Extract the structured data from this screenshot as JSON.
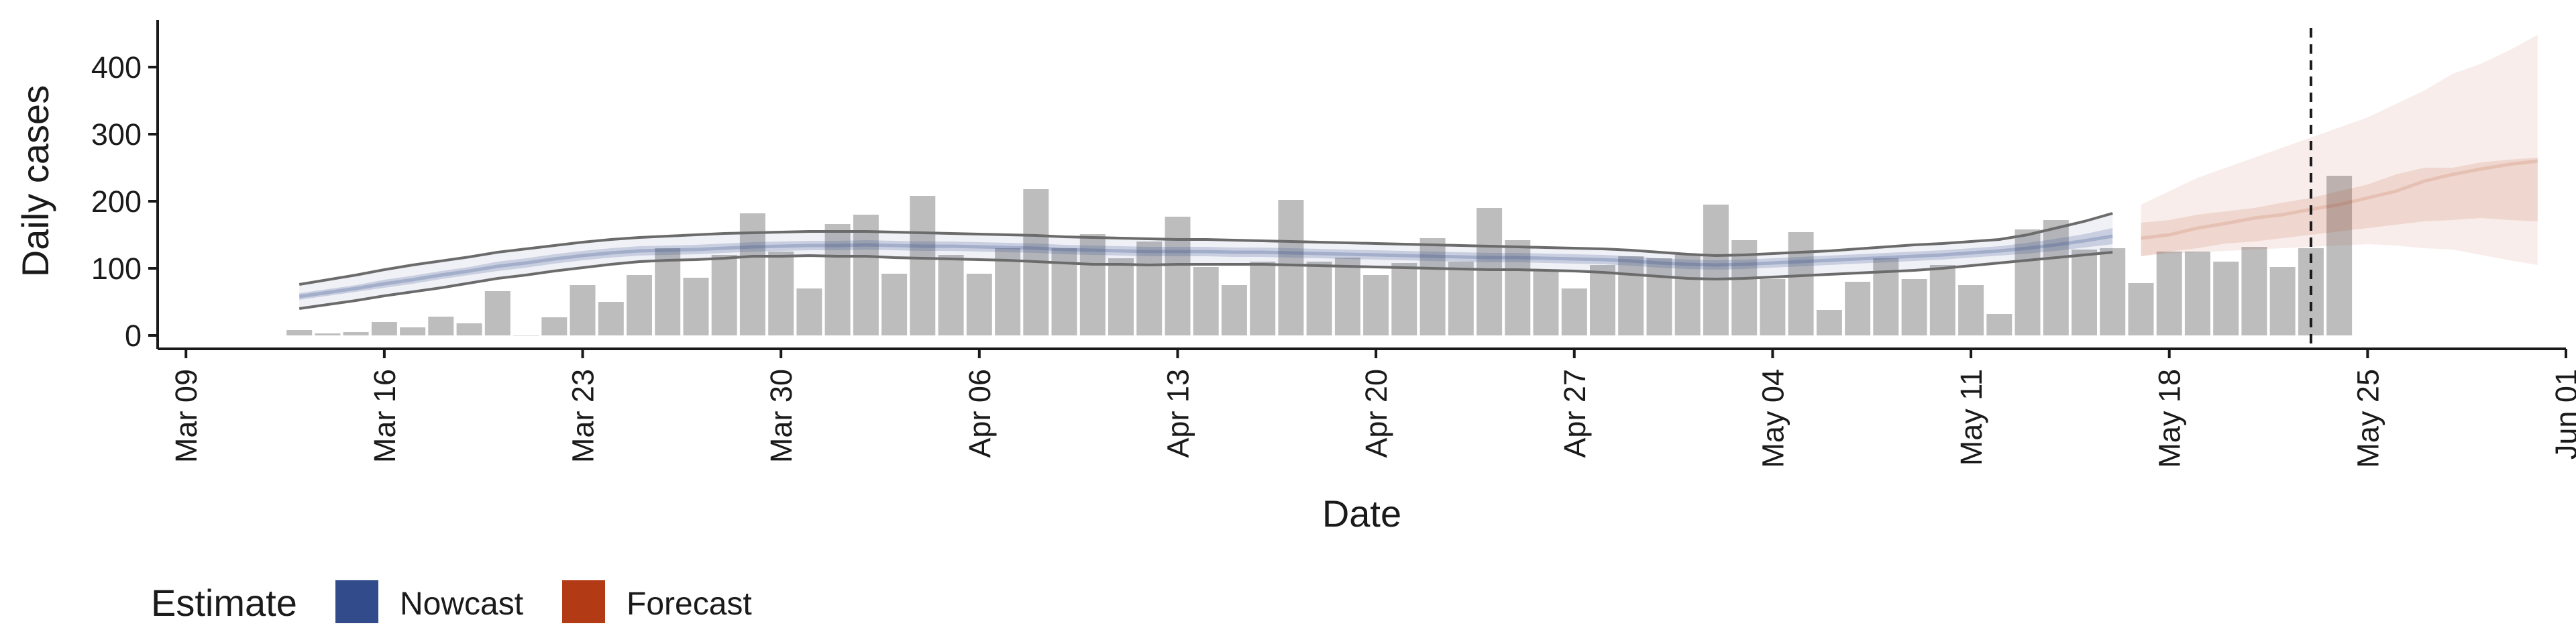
{
  "chart_data": {
    "type": "bar",
    "xlabel": "Date",
    "ylabel": "Daily cases",
    "y_ticks": [
      0,
      100,
      200,
      300,
      400
    ],
    "ylim": [
      -20,
      470
    ],
    "x_domain": [
      "2020-03-08",
      "2020-06-01"
    ],
    "x_ticks": [
      {
        "date": "2020-03-09",
        "label": "Mar 09"
      },
      {
        "date": "2020-03-16",
        "label": "Mar 16"
      },
      {
        "date": "2020-03-23",
        "label": "Mar 23"
      },
      {
        "date": "2020-03-30",
        "label": "Mar 30"
      },
      {
        "date": "2020-04-06",
        "label": "Apr 06"
      },
      {
        "date": "2020-04-13",
        "label": "Apr 13"
      },
      {
        "date": "2020-04-20",
        "label": "Apr 20"
      },
      {
        "date": "2020-04-27",
        "label": "Apr 27"
      },
      {
        "date": "2020-05-04",
        "label": "May 04"
      },
      {
        "date": "2020-05-11",
        "label": "May 11"
      },
      {
        "date": "2020-05-18",
        "label": "May 18"
      },
      {
        "date": "2020-05-25",
        "label": "May 25"
      },
      {
        "date": "2020-06-01",
        "label": "Jun 01"
      }
    ],
    "reported_cases": {
      "start_date": "2020-03-13",
      "values": [
        8,
        3,
        5,
        20,
        12,
        28,
        18,
        66,
        0,
        27,
        75,
        50,
        90,
        130,
        86,
        120,
        182,
        125,
        70,
        166,
        180,
        92,
        208,
        120,
        92,
        130,
        218,
        130,
        151,
        115,
        140,
        177,
        102,
        75,
        110,
        202,
        110,
        116,
        90,
        108,
        145,
        110,
        190,
        142,
        98,
        70,
        105,
        118,
        115,
        120,
        195,
        142,
        84,
        154,
        38,
        80,
        115,
        84,
        105,
        75,
        32,
        158,
        172,
        128,
        130,
        78,
        125,
        125,
        110,
        132,
        102,
        130,
        238
      ]
    },
    "nowcast": {
      "start_date": "2020-03-13",
      "mean": [
        58,
        64,
        70,
        77,
        83,
        90,
        96,
        103,
        108,
        114,
        119,
        123,
        126,
        127,
        128,
        130,
        132,
        133,
        134,
        134,
        135,
        134,
        133,
        133,
        132,
        131,
        130,
        128,
        127,
        126,
        125,
        125,
        125,
        124,
        124,
        123,
        122,
        121,
        120,
        119,
        118,
        117,
        116,
        116,
        115,
        114,
        113,
        111,
        108,
        106,
        105,
        106,
        108,
        110,
        112,
        114,
        116,
        118,
        120,
        123,
        126,
        130,
        135,
        141,
        148
      ],
      "inner_lower": [
        53,
        59,
        65,
        71,
        77,
        84,
        90,
        96,
        101,
        107,
        112,
        116,
        119,
        120,
        121,
        123,
        125,
        126,
        127,
        127,
        128,
        127,
        126,
        126,
        125,
        124,
        123,
        121,
        120,
        119,
        118,
        118,
        118,
        117,
        117,
        116,
        115,
        114,
        113,
        112,
        111,
        110,
        109,
        109,
        108,
        107,
        106,
        104,
        101,
        99,
        98,
        99,
        101,
        103,
        105,
        107,
        109,
        111,
        113,
        116,
        119,
        122,
        126,
        131,
        136
      ],
      "inner_upper": [
        63,
        69,
        75,
        83,
        89,
        96,
        102,
        110,
        115,
        121,
        126,
        130,
        133,
        134,
        135,
        137,
        139,
        140,
        141,
        141,
        142,
        141,
        140,
        140,
        139,
        138,
        137,
        135,
        134,
        133,
        132,
        132,
        132,
        131,
        131,
        130,
        129,
        128,
        127,
        126,
        125,
        124,
        123,
        123,
        122,
        121,
        120,
        118,
        115,
        113,
        112,
        113,
        115,
        117,
        119,
        121,
        123,
        125,
        127,
        130,
        133,
        138,
        144,
        151,
        160
      ],
      "outer_lower": [
        40,
        46,
        52,
        59,
        65,
        71,
        78,
        85,
        90,
        96,
        101,
        106,
        110,
        112,
        113,
        115,
        118,
        118,
        119,
        118,
        118,
        116,
        115,
        114,
        113,
        112,
        110,
        108,
        106,
        106,
        105,
        106,
        106,
        106,
        106,
        105,
        104,
        103,
        102,
        101,
        100,
        99,
        98,
        98,
        97,
        96,
        94,
        91,
        88,
        85,
        84,
        85,
        87,
        89,
        91,
        93,
        95,
        97,
        100,
        104,
        108,
        112,
        116,
        120,
        124
      ],
      "outer_upper": [
        76,
        83,
        90,
        98,
        105,
        111,
        117,
        124,
        129,
        134,
        139,
        143,
        146,
        148,
        150,
        152,
        153,
        154,
        155,
        155,
        155,
        154,
        153,
        152,
        151,
        150,
        149,
        147,
        146,
        145,
        144,
        143,
        143,
        142,
        141,
        140,
        139,
        138,
        137,
        136,
        135,
        134,
        133,
        132,
        131,
        130,
        129,
        127,
        124,
        121,
        119,
        120,
        122,
        124,
        126,
        129,
        132,
        135,
        137,
        140,
        143,
        150,
        160,
        170,
        182
      ]
    },
    "forecast": {
      "start_date": "2020-05-17",
      "mean": [
        145,
        150,
        160,
        167,
        175,
        180,
        188,
        195,
        205,
        215,
        230,
        240,
        248,
        255,
        260
      ],
      "inner_lower": [
        118,
        125,
        130,
        137,
        140,
        145,
        150,
        155,
        160,
        165,
        170,
        172,
        175,
        172,
        170
      ],
      "inner_upper": [
        168,
        172,
        180,
        185,
        190,
        198,
        205,
        215,
        225,
        240,
        250,
        250,
        258,
        262,
        265
      ],
      "outer_lower": [
        118,
        122,
        124,
        126,
        128,
        130,
        132,
        134,
        136,
        134,
        130,
        128,
        120,
        112,
        105
      ],
      "outer_upper": [
        195,
        215,
        235,
        250,
        265,
        280,
        295,
        310,
        325,
        345,
        365,
        390,
        405,
        425,
        448
      ]
    },
    "vline_date": "2020-05-23",
    "legend": {
      "title": "Estimate",
      "position": "bottom-left",
      "items": [
        {
          "label": "Nowcast",
          "color": "#324b8b"
        },
        {
          "label": "Forecast",
          "color": "#b23a14"
        }
      ]
    },
    "colors": {
      "bars": "#bdbdbd",
      "nowcast_band": "#324b8b",
      "forecast_band": "#b23a14",
      "outline": "#6b6b6b",
      "axis": "#1a1a1a"
    }
  }
}
